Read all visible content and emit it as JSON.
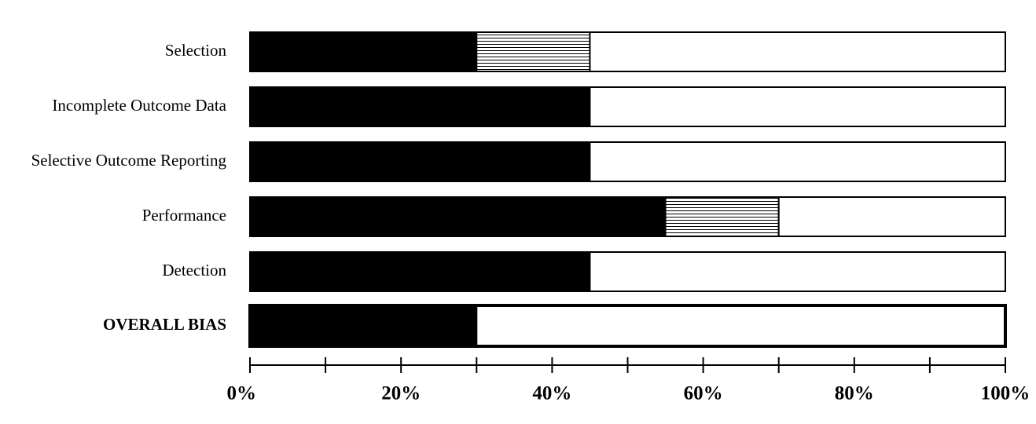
{
  "chart_data": {
    "type": "stacked-barh",
    "categories": [
      "Selection",
      "Incomplete Outcome Data",
      "Selective Outcome Reporting",
      "Performance",
      "Detection",
      "OVERALL BIAS"
    ],
    "series": [
      {
        "color": "#000000",
        "values": [
          30,
          45,
          45,
          55,
          45,
          30
        ]
      },
      {
        "color": "#000000",
        "pattern": "horizontal-lines",
        "values": [
          15,
          0,
          0,
          15,
          0,
          0
        ]
      },
      {
        "color": "#ffffff",
        "values": [
          55,
          55,
          55,
          30,
          55,
          70
        ]
      }
    ],
    "xlim": [
      0,
      100
    ],
    "xticks": [
      {
        "value": 0,
        "label": "0%"
      },
      {
        "value": 20,
        "label": "20%"
      },
      {
        "value": 40,
        "label": "40%"
      },
      {
        "value": 60,
        "label": "60%"
      },
      {
        "value": 80,
        "label": "80%"
      },
      {
        "value": 100,
        "label": "100%"
      }
    ],
    "xminor_ticks": [
      10,
      30,
      50,
      70,
      90
    ]
  }
}
